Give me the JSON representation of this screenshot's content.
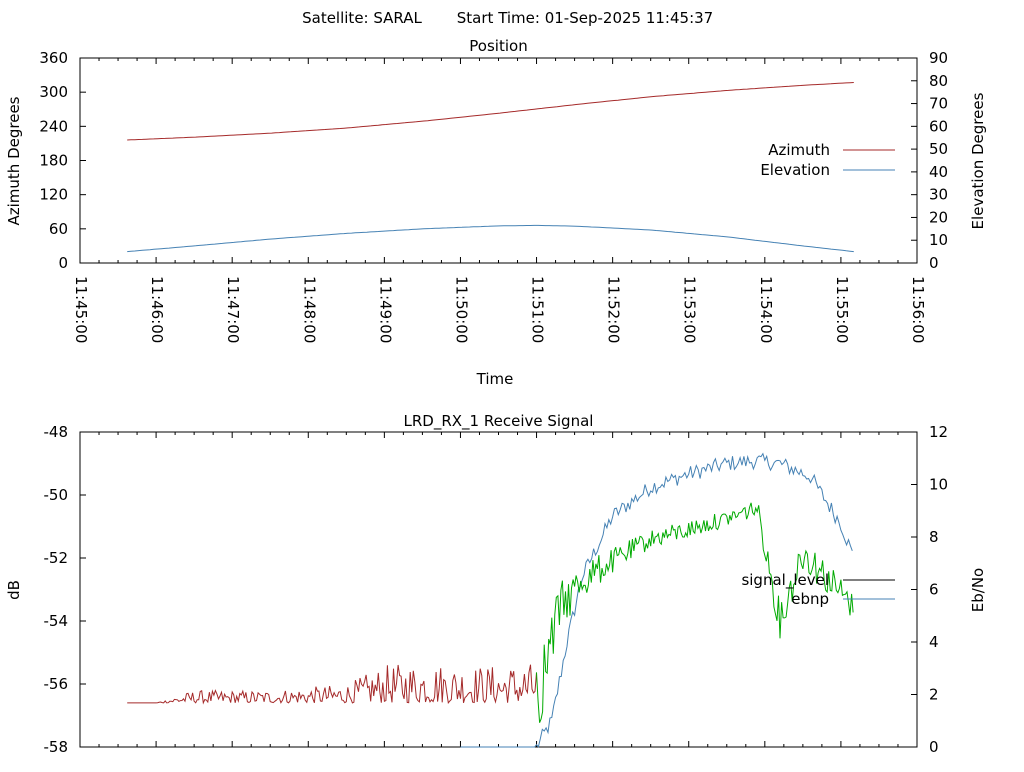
{
  "header": {
    "satellite": "Satellite: SARAL",
    "start_time": "Start Time: 01-Sep-2025 11:45:37"
  },
  "colors": {
    "azimuth": "#a52a2a",
    "elevation": "#4682b4",
    "signal_level_low": "#a52a2a",
    "signal_level_high": "#00aa00",
    "ebno": "#4682b4",
    "signal_level_legend": "#000000",
    "axis": "#000000"
  },
  "chart_data": [
    {
      "type": "line",
      "title": "Position",
      "xlabel": "Time",
      "ylabel": "Azimuth Degrees",
      "y2label": "Elevation Degrees",
      "x_ticks": [
        "11:45:00",
        "11:46:00",
        "11:47:00",
        "11:48:00",
        "11:49:00",
        "11:50:00",
        "11:51:00",
        "11:52:00",
        "11:53:00",
        "11:54:00",
        "11:55:00",
        "11:56:00"
      ],
      "xlim": [
        0,
        11
      ],
      "ylim": [
        0,
        360
      ],
      "y_ticks": [
        0,
        60,
        120,
        180,
        240,
        300,
        360
      ],
      "y2lim": [
        0,
        90
      ],
      "y2_ticks": [
        0,
        10,
        20,
        30,
        40,
        50,
        60,
        70,
        80,
        90
      ],
      "legend": "right",
      "series": [
        {
          "name": "Azimuth",
          "axis": "y",
          "x": [
            0.62,
            1.5,
            2.5,
            3.5,
            4.5,
            5.5,
            6.5,
            7.5,
            8.5,
            9.5,
            10.17
          ],
          "y": [
            216,
            221,
            228,
            237,
            249,
            263,
            278,
            292,
            303,
            312,
            317
          ]
        },
        {
          "name": "Elevation",
          "axis": "y2",
          "x": [
            0.62,
            1.5,
            2.5,
            3.5,
            4.5,
            5.5,
            6.0,
            6.5,
            7.5,
            8.5,
            9.5,
            10.17
          ],
          "y": [
            5,
            7.5,
            10.5,
            13,
            15,
            16.3,
            16.5,
            16.2,
            14.5,
            11.5,
            7.5,
            5
          ]
        }
      ]
    },
    {
      "type": "line",
      "title": "LRD_RX_1 Receive Signal",
      "ylabel": "dB",
      "y2label": "Eb/No",
      "xlim": [
        0,
        11
      ],
      "ylim": [
        -58,
        -48
      ],
      "y_ticks": [
        -58,
        -56,
        -54,
        -52,
        -50,
        -48
      ],
      "y2lim": [
        0,
        12
      ],
      "y2_ticks": [
        0,
        2,
        4,
        6,
        8,
        10,
        12
      ],
      "legend": "right",
      "series": [
        {
          "name": "signal_level",
          "axis": "y",
          "x": [
            0.62,
            1.0,
            1.5,
            2.0,
            2.5,
            3.0,
            3.5,
            4.0,
            4.5,
            5.0,
            5.5,
            6.0,
            6.3,
            6.6,
            7.0,
            7.5,
            8.0,
            8.5,
            8.9,
            9.2,
            9.5,
            10.0,
            10.17
          ],
          "y": [
            -56.6,
            -56.6,
            -56.2,
            -56.2,
            -56.2,
            -56.1,
            -56.0,
            -55.4,
            -55.3,
            -55.4,
            -55.4,
            -55.3,
            -52.8,
            -52.1,
            -51.7,
            -51.1,
            -50.8,
            -50.5,
            -50.1,
            -53.4,
            -51.2,
            -52.6,
            -53.2
          ],
          "low_amplitude": [
            0.1,
            0.15,
            0.35,
            0.45,
            0.55,
            0.6,
            0.8,
            1.2,
            1.3,
            1.2,
            1.2,
            1.3,
            0.8,
            0.6,
            0.4,
            0.3,
            0.3,
            0.25,
            0.3,
            0.6,
            0.6,
            0.5,
            0.4
          ]
        },
        {
          "name": "ebnp",
          "axis": "y2",
          "x": [
            5.0,
            6.0,
            6.2,
            6.4,
            6.6,
            7.0,
            7.5,
            8.0,
            8.5,
            8.9,
            9.2,
            9.6,
            10.0,
            10.17
          ],
          "y": [
            0,
            0,
            1,
            4,
            6.5,
            8.8,
            9.9,
            10.4,
            10.8,
            10.9,
            10.8,
            10.3,
            8.5,
            7.2
          ]
        }
      ]
    }
  ]
}
